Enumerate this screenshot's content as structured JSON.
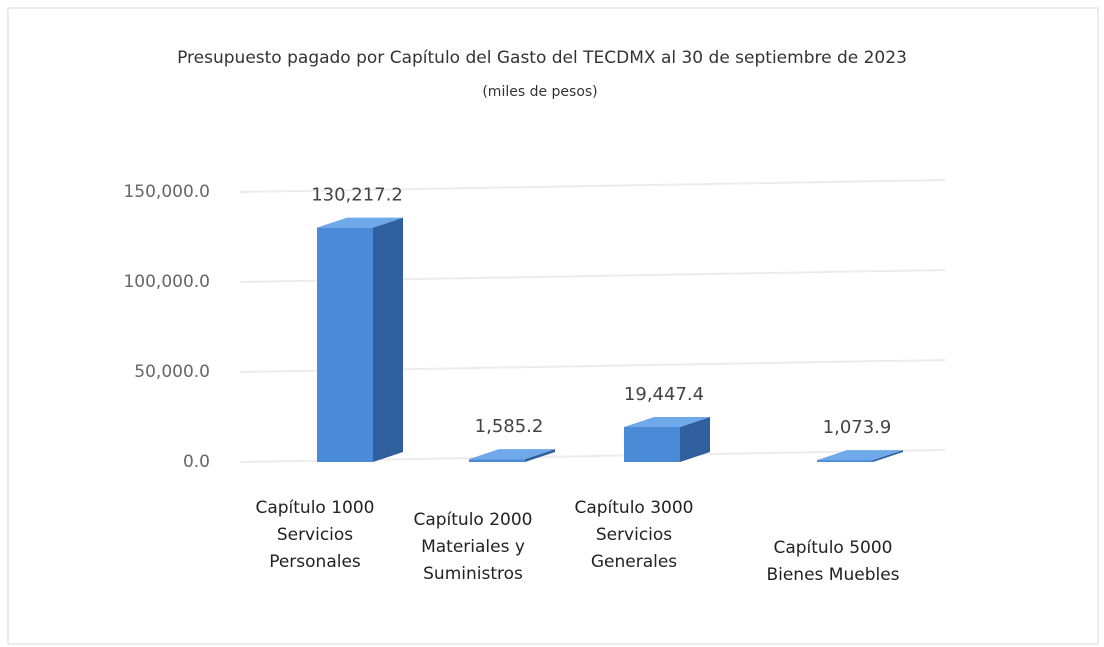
{
  "chart_data": {
    "type": "bar3d",
    "title": "Presupuesto pagado por Capítulo del Gasto del TECDMX al 30 de  septiembre de 2023",
    "subtitle": "(miles de pesos)",
    "categories": [
      [
        "Capítulo 1000",
        "Servicios",
        "Personales"
      ],
      [
        "Capítulo 2000",
        "Materiales y",
        "Suministros"
      ],
      [
        "Capítulo 3000",
        "Servicios",
        "Generales"
      ],
      [
        "Capítulo 5000",
        "Bienes Muebles"
      ]
    ],
    "values": [
      130217.2,
      1585.2,
      19447.4,
      1073.9
    ],
    "value_labels": [
      "130,217.2",
      "1,585.2",
      "19,447.4",
      "1,073.9"
    ],
    "color": "#4a8ad6",
    "ylim": [
      0,
      150000
    ],
    "yticks": [
      {
        "value": 0,
        "label": "0.0"
      },
      {
        "value": 50000,
        "label": "50,000.0"
      },
      {
        "value": 100000,
        "label": "100,000.0"
      },
      {
        "value": 150000,
        "label": "150,000.0"
      }
    ],
    "grid": true
  }
}
